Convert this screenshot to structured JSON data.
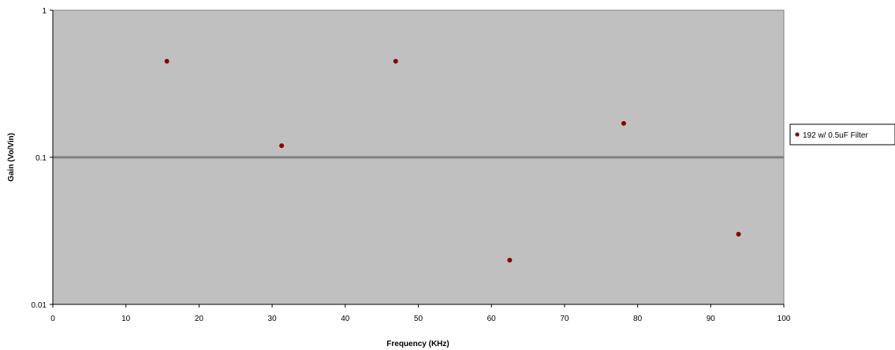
{
  "chart_data": {
    "type": "scatter",
    "title": "",
    "xlabel": "Frequency (KHz)",
    "ylabel": "Gain (Vo/Vin)",
    "xlim": [
      0,
      100
    ],
    "ylim": [
      0.01,
      1
    ],
    "yscale": "log",
    "grid": "major y gridline at 0.1",
    "legend_position": "right",
    "x_ticks": [
      "0",
      "10",
      "20",
      "30",
      "40",
      "50",
      "60",
      "70",
      "80",
      "90",
      "100"
    ],
    "y_ticks": [
      "0.01",
      "0.1",
      "1"
    ],
    "series": [
      {
        "name": "192 w/ 0.5uF Filter",
        "color": "#8b0000",
        "x": [
          15.6,
          31.3,
          46.9,
          62.5,
          78.1,
          93.8
        ],
        "y": [
          0.45,
          0.12,
          0.45,
          0.02,
          0.17,
          0.03
        ]
      }
    ],
    "colors": {
      "plot_bg": "#c0c0c0",
      "gridline": "#808080",
      "marker": "#8b0000"
    }
  }
}
